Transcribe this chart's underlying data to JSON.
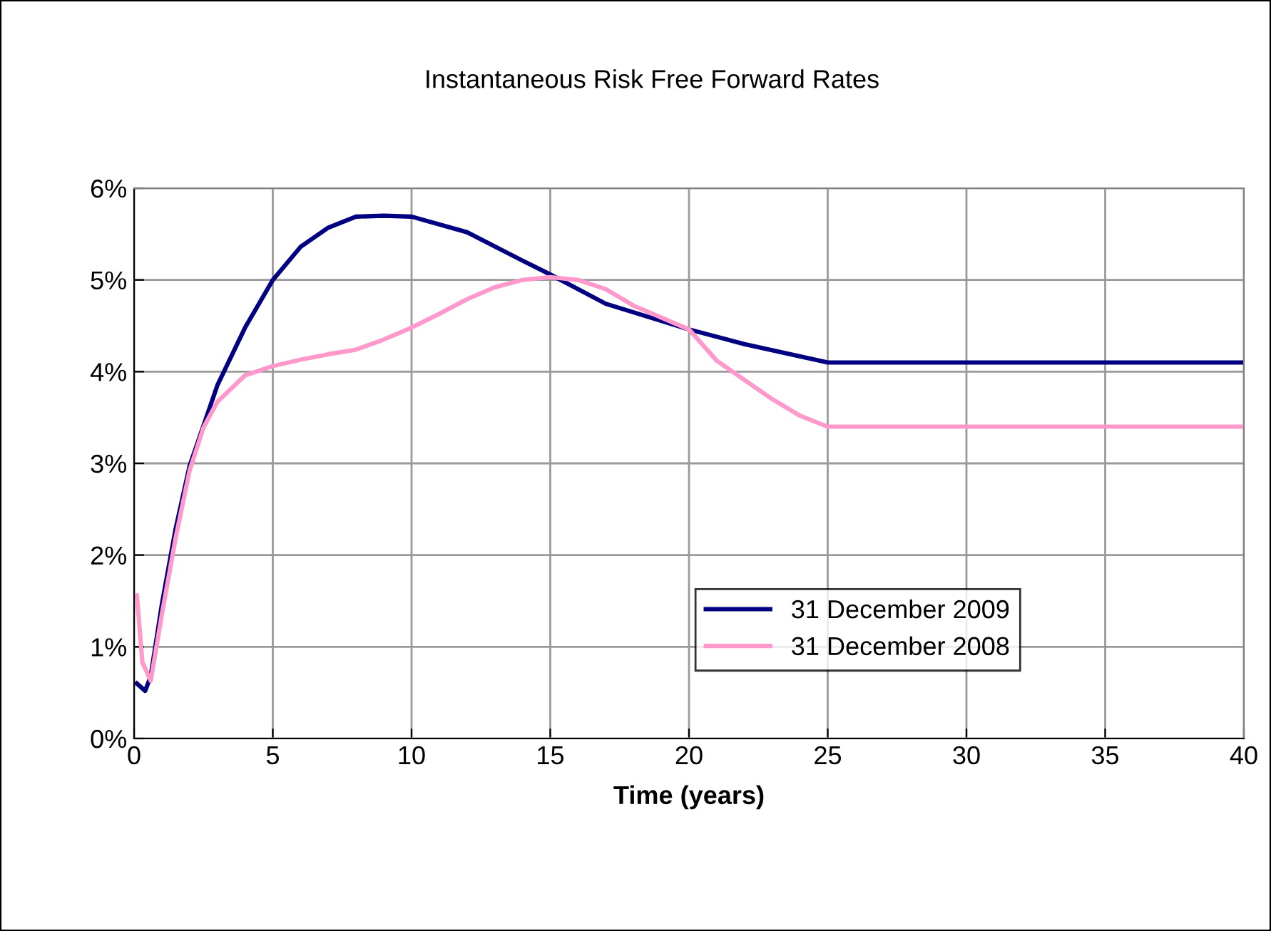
{
  "chart_data": {
    "type": "line",
    "title": "Instantaneous Risk Free Forward Rates",
    "xlabel": "Time (years)",
    "xlim": [
      0,
      40
    ],
    "xticks": [
      0,
      5,
      10,
      15,
      20,
      25,
      30,
      35,
      40
    ],
    "ylim": [
      0,
      6
    ],
    "yticks": [
      {
        "value": 0,
        "label": "0%"
      },
      {
        "value": 1,
        "label": "1%"
      },
      {
        "value": 2,
        "label": "2%"
      },
      {
        "value": 3,
        "label": "3%"
      },
      {
        "value": 4,
        "label": "4%"
      },
      {
        "value": 5,
        "label": "5%"
      },
      {
        "value": 6,
        "label": "6%"
      }
    ],
    "grid": true,
    "legend": "bottom right",
    "line_style": "solid",
    "marker": "none",
    "series": [
      {
        "name": "31 December 2009",
        "color": "#000080",
        "x": [
          0.1,
          0.4,
          0.6,
          1,
          1.5,
          2,
          3,
          4,
          5,
          6,
          7,
          8,
          9,
          10,
          12,
          14,
          15,
          17,
          20,
          22,
          25,
          30,
          35,
          40
        ],
        "values": [
          0.6,
          0.52,
          0.68,
          1.46,
          2.29,
          2.97,
          3.85,
          4.48,
          5.0,
          5.36,
          5.57,
          5.69,
          5.7,
          5.69,
          5.52,
          5.21,
          5.06,
          4.74,
          4.46,
          4.3,
          4.1,
          4.1,
          4.1,
          4.1
        ]
      },
      {
        "name": "31 December 2008",
        "color": "#ff99cc",
        "x": [
          0.1,
          0.3,
          0.6,
          1,
          1.5,
          2,
          2.5,
          3,
          4,
          5,
          6,
          7,
          8,
          9,
          10,
          11,
          12,
          13,
          14,
          15,
          16,
          17,
          18,
          20,
          21,
          22,
          23,
          24,
          25,
          30,
          35,
          40
        ],
        "values": [
          1.56,
          0.83,
          0.63,
          1.35,
          2.19,
          2.92,
          3.39,
          3.67,
          3.96,
          4.06,
          4.13,
          4.19,
          4.24,
          4.35,
          4.48,
          4.63,
          4.79,
          4.92,
          5.0,
          5.03,
          5.0,
          4.9,
          4.72,
          4.46,
          4.12,
          3.91,
          3.7,
          3.52,
          3.4,
          3.4,
          3.4,
          3.4
        ]
      }
    ]
  }
}
